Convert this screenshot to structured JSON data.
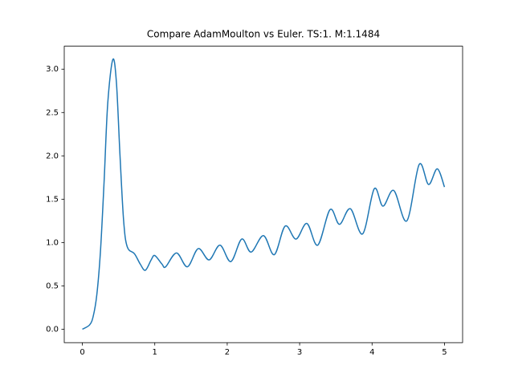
{
  "chart_data": {
    "type": "line",
    "title": "Compare AdamMoulton vs Euler. TS:1. M:1.1484",
    "x": [
      0,
      0.1,
      0.15,
      0.2,
      0.25,
      0.3,
      0.35,
      0.42,
      0.47,
      0.52,
      0.57,
      0.62,
      0.72,
      0.8,
      0.87,
      0.95,
      1.0,
      1.1,
      1.15,
      1.3,
      1.45,
      1.6,
      1.75,
      1.9,
      2.05,
      2.2,
      2.33,
      2.5,
      2.65,
      2.8,
      2.95,
      3.1,
      3.25,
      3.42,
      3.55,
      3.7,
      3.87,
      4.03,
      4.15,
      4.3,
      4.48,
      4.65,
      4.78,
      4.9,
      5.0
    ],
    "series": [
      {
        "color": "#1f77b4",
        "values": [
          0,
          0.05,
          0.15,
          0.4,
          0.9,
          1.7,
          2.6,
          3.11,
          2.85,
          2.0,
          1.25,
          0.95,
          0.87,
          0.75,
          0.68,
          0.8,
          0.85,
          0.75,
          0.72,
          0.88,
          0.72,
          0.93,
          0.8,
          0.97,
          0.78,
          1.04,
          0.89,
          1.08,
          0.86,
          1.19,
          1.04,
          1.22,
          0.97,
          1.38,
          1.21,
          1.39,
          1.1,
          1.62,
          1.42,
          1.6,
          1.25,
          1.9,
          1.67,
          1.85,
          1.64
        ]
      }
    ],
    "xlim": [
      -0.25,
      5.25
    ],
    "xticks": [
      0,
      1,
      2,
      3,
      4,
      5
    ],
    "ylim": [
      -0.155,
      3.265
    ],
    "yticks": [
      {
        "value": 0,
        "label": "0.0"
      },
      {
        "value": 0.5,
        "label": "0.5"
      },
      {
        "value": 1,
        "label": "1.0"
      },
      {
        "value": 1.5,
        "label": "1.5"
      },
      {
        "value": 2,
        "label": "2.0"
      },
      {
        "value": 2.5,
        "label": "2.5"
      },
      {
        "value": 3,
        "label": "3.0"
      }
    ],
    "grid": false
  }
}
